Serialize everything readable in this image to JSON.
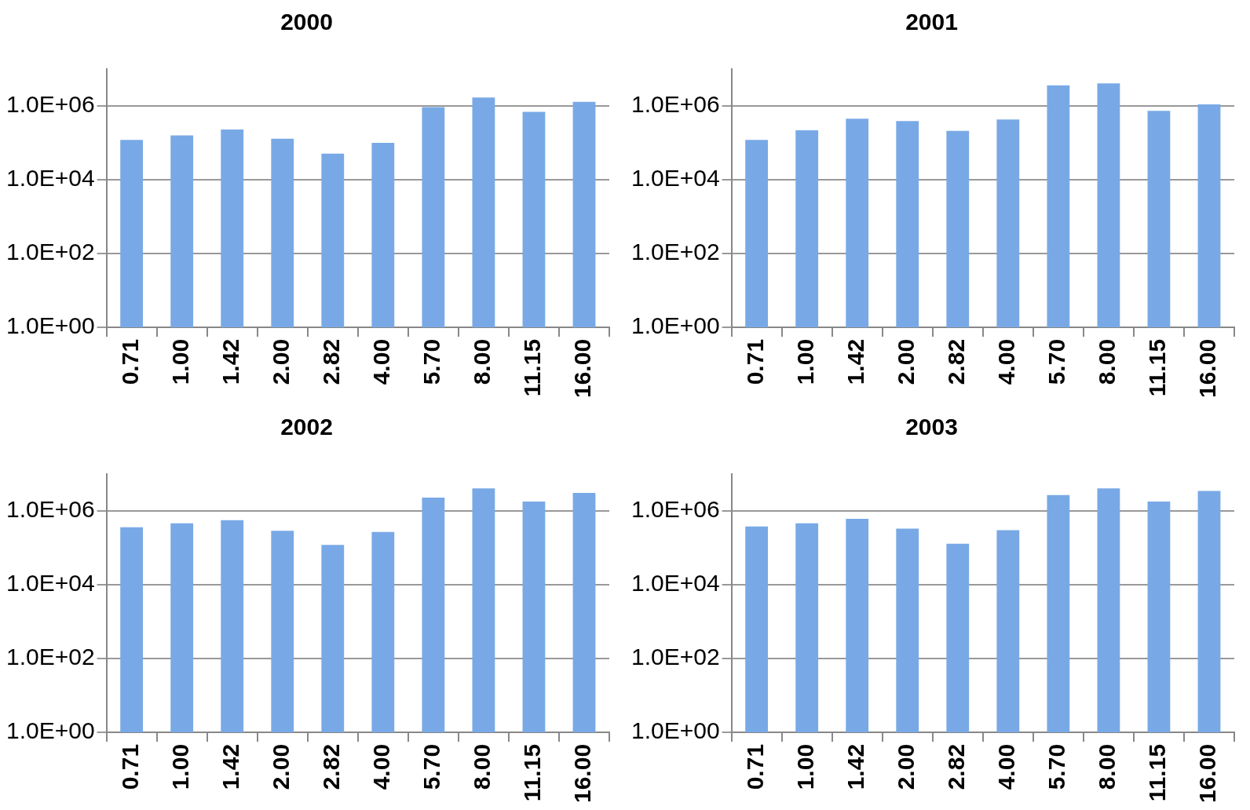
{
  "chart_data": [
    {
      "type": "bar",
      "title": "2000",
      "categories": [
        "0.71",
        "1.00",
        "1.42",
        "2.00",
        "2.82",
        "4.00",
        "5.70",
        "8.00",
        "11.15",
        "16.00"
      ],
      "color": "#78a9e6",
      "log": true,
      "grid": "y",
      "ylim": [
        1,
        10000000
      ],
      "values": [
        120000,
        160000,
        230000,
        130000,
        51000,
        100000,
        930000,
        1700000,
        690000,
        1300000
      ],
      "yticks": [
        {
          "value": 1,
          "label": "1.0E+00"
        },
        {
          "value": 100,
          "label": "1.0E+02"
        },
        {
          "value": 10000,
          "label": "1.0E+04"
        },
        {
          "value": 1000000,
          "label": "1.0E+06"
        }
      ]
    },
    {
      "type": "bar",
      "title": "2001",
      "categories": [
        "0.71",
        "1.00",
        "1.42",
        "2.00",
        "2.82",
        "4.00",
        "5.70",
        "8.00",
        "11.15",
        "16.00"
      ],
      "color": "#78a9e6",
      "log": true,
      "grid": "y",
      "ylim": [
        1,
        10000000
      ],
      "values": [
        120000,
        220000,
        450000,
        390000,
        210000,
        430000,
        3600000,
        4100000,
        740000,
        1100000
      ],
      "yticks": [
        {
          "value": 1,
          "label": "1.0E+00"
        },
        {
          "value": 100,
          "label": "1.0E+02"
        },
        {
          "value": 10000,
          "label": "1.0E+04"
        },
        {
          "value": 1000000,
          "label": "1.0E+06"
        }
      ]
    },
    {
      "type": "bar",
      "title": "2002",
      "categories": [
        "0.71",
        "1.00",
        "1.42",
        "2.00",
        "2.82",
        "4.00",
        "5.70",
        "8.00",
        "11.15",
        "16.00"
      ],
      "color": "#78a9e6",
      "log": true,
      "grid": "y",
      "ylim": [
        1,
        10000000
      ],
      "values": [
        360000,
        460000,
        560000,
        290000,
        120000,
        270000,
        2300000,
        4100000,
        1800000,
        3100000
      ],
      "yticks": [
        {
          "value": 1,
          "label": "1.0E+00"
        },
        {
          "value": 100,
          "label": "1.0E+02"
        },
        {
          "value": 10000,
          "label": "1.0E+04"
        },
        {
          "value": 1000000,
          "label": "1.0E+06"
        }
      ]
    },
    {
      "type": "bar",
      "title": "2003",
      "categories": [
        "0.71",
        "1.00",
        "1.42",
        "2.00",
        "2.82",
        "4.00",
        "5.70",
        "8.00",
        "11.15",
        "16.00"
      ],
      "color": "#78a9e6",
      "log": true,
      "grid": "y",
      "ylim": [
        1,
        10000000
      ],
      "values": [
        380000,
        460000,
        610000,
        330000,
        130000,
        300000,
        2700000,
        4100000,
        1800000,
        3500000
      ],
      "yticks": [
        {
          "value": 1,
          "label": "1.0E+00"
        },
        {
          "value": 100,
          "label": "1.0E+02"
        },
        {
          "value": 10000,
          "label": "1.0E+04"
        },
        {
          "value": 1000000,
          "label": "1.0E+06"
        }
      ]
    }
  ]
}
